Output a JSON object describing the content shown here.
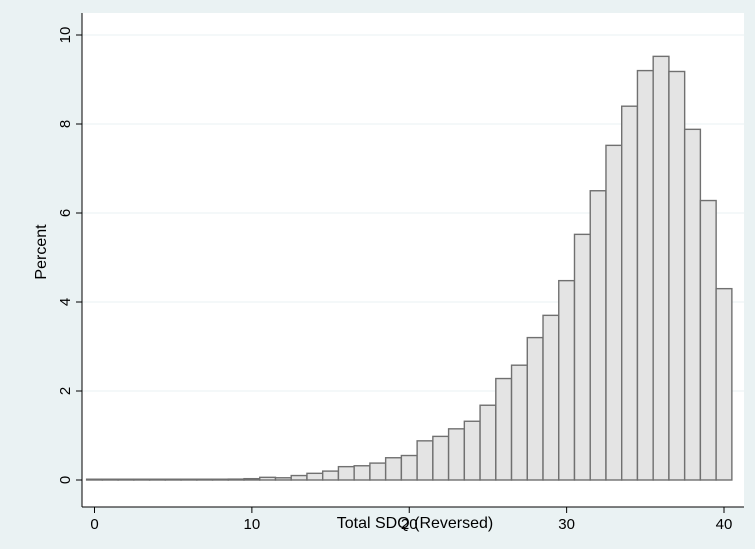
{
  "chart_data": {
    "type": "bar",
    "subtype": "histogram",
    "xlabel": "Total SDQ (Reversed)",
    "ylabel": "Percent",
    "xlim": [
      0,
      40
    ],
    "ylim": [
      0,
      10
    ],
    "x_ticks": [
      0,
      10,
      20,
      30,
      40
    ],
    "y_ticks": [
      0,
      2,
      4,
      6,
      8,
      10
    ],
    "grid": true,
    "legend": "none",
    "bar_color": "#e4e4e4",
    "bar_edge_color": "#707070",
    "bins": [
      0,
      1,
      2,
      3,
      4,
      5,
      6,
      7,
      8,
      9,
      10,
      11,
      12,
      13,
      14,
      15,
      16,
      17,
      18,
      19,
      20,
      21,
      22,
      23,
      24,
      25,
      26,
      27,
      28,
      29,
      30,
      31,
      32,
      33,
      34,
      35,
      36,
      37,
      38,
      39,
      40
    ],
    "values": [
      0.0,
      0.0,
      0.01,
      0.01,
      0.0,
      0.0,
      0.01,
      0.01,
      0.01,
      0.02,
      0.03,
      0.06,
      0.05,
      0.1,
      0.15,
      0.2,
      0.3,
      0.32,
      0.38,
      0.5,
      0.55,
      0.88,
      0.98,
      1.15,
      1.32,
      1.68,
      2.28,
      2.58,
      3.2,
      3.7,
      4.48,
      5.52,
      6.5,
      7.52,
      8.4,
      9.2,
      9.52,
      9.18,
      7.88,
      6.28,
      4.3
    ]
  }
}
